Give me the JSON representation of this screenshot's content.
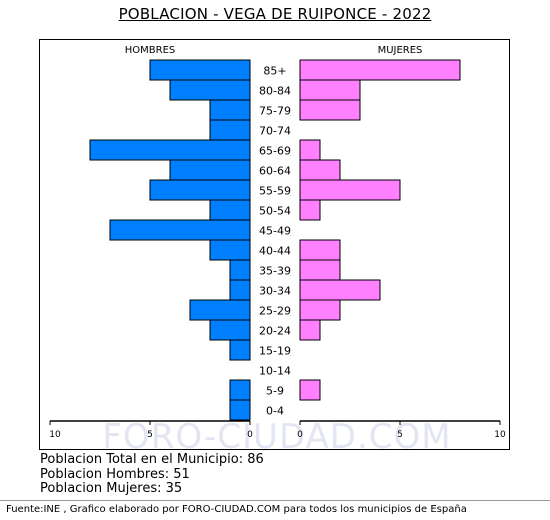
{
  "chart_data": {
    "type": "bar",
    "orientation": "horizontal",
    "layout": "population-pyramid",
    "title": "POBLACION - VEGA DE RUIPONCE - 2022",
    "categories": [
      "85+",
      "80-84",
      "75-79",
      "70-74",
      "65-69",
      "60-64",
      "55-59",
      "50-54",
      "45-49",
      "40-44",
      "35-39",
      "30-34",
      "25-29",
      "20-24",
      "15-19",
      "10-14",
      "5-9",
      "0-4"
    ],
    "series": [
      {
        "name": "HOMBRES",
        "color": "#0080ff",
        "values": [
          5,
          4,
          2,
          2,
          8,
          4,
          5,
          2,
          7,
          2,
          1,
          1,
          3,
          2,
          1,
          0,
          1,
          1
        ]
      },
      {
        "name": "MUJERES",
        "color": "#ff80ff",
        "values": [
          8,
          3,
          3,
          0,
          1,
          2,
          5,
          1,
          0,
          2,
          2,
          4,
          2,
          1,
          0,
          0,
          1,
          0
        ]
      }
    ],
    "x_ticks": [
      "10",
      "5",
      "0",
      "0",
      "5",
      "10"
    ],
    "xlim": [
      0,
      10
    ],
    "watermark": "FORO-CIUDAD.COM"
  },
  "summary": {
    "total": "Poblacion Total en el Municipio: 86",
    "hombres": "Poblacion Hombres: 51",
    "mujeres": "Poblacion Mujeres: 35"
  },
  "source": "Fuente:INE , Grafico elaborado por FORO-CIUDAD.COM para todos los municipios de España"
}
